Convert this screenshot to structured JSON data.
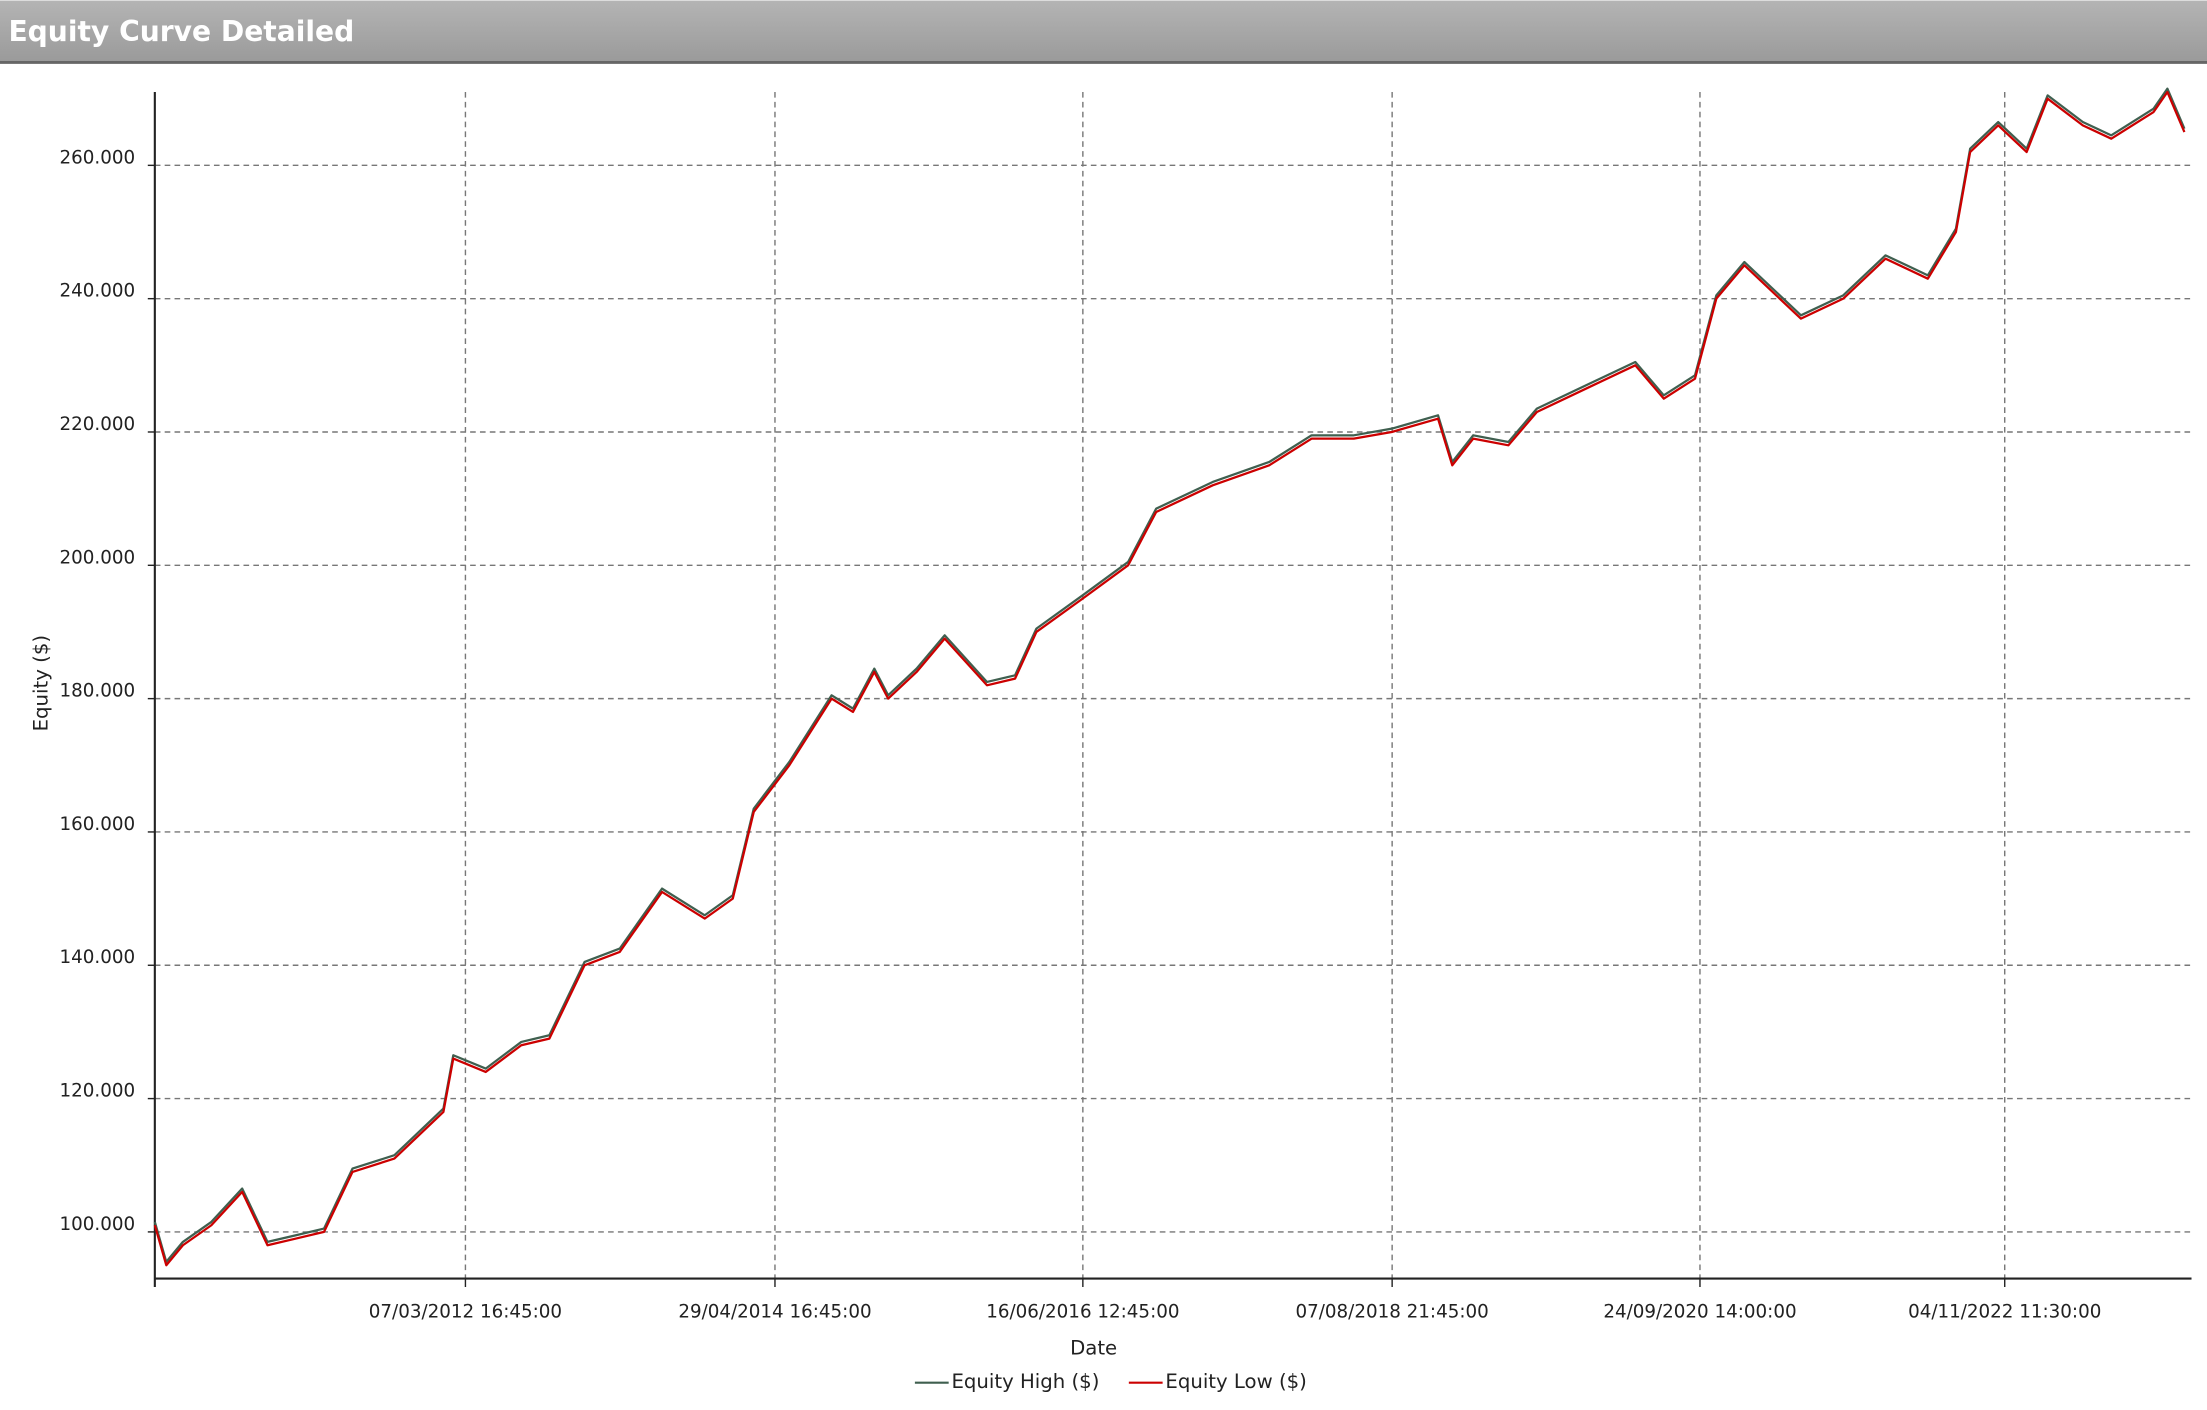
{
  "chart_data": {
    "type": "line",
    "title": "Equity Curve Detailed",
    "x_label": "Date",
    "y_label": "Equity ($)",
    "x": [
      "2010-01-12",
      "2010-02-10",
      "2010-03-24",
      "2010-06-04",
      "2010-08-21",
      "2010-10-24",
      "2011-01-04",
      "2011-03-16",
      "2011-05-27",
      "2011-09-10",
      "2012-01-12",
      "2012-02-06",
      "2012-04-28",
      "2012-07-27",
      "2012-10-06",
      "2013-01-03",
      "2013-04-02",
      "2013-07-18",
      "2013-11-03",
      "2014-01-13",
      "2014-03-07",
      "2014-06-05",
      "2014-09-20",
      "2014-11-13",
      "2015-01-06",
      "2015-02-10",
      "2015-04-23",
      "2015-07-03",
      "2015-10-18",
      "2015-12-28",
      "2016-02-20",
      "2016-06-16",
      "2016-10-09",
      "2016-12-19",
      "2017-05-11",
      "2017-10-01",
      "2018-01-16",
      "2018-05-03",
      "2018-08-07",
      "2018-12-02",
      "2019-01-07",
      "2019-03-01",
      "2019-05-29",
      "2019-08-09",
      "2019-12-29",
      "2020-04-14",
      "2020-06-25",
      "2020-09-12",
      "2020-11-05",
      "2021-01-15",
      "2021-06-07",
      "2021-09-22",
      "2022-01-07",
      "2022-04-24",
      "2022-07-04",
      "2022-08-09",
      "2022-10-19",
      "2022-12-30",
      "2023-02-21",
      "2023-05-21",
      "2023-08-01",
      "2023-11-16",
      "2023-12-21",
      "2024-02-02"
    ],
    "series": [
      {
        "name": "Equity High ($)",
        "color": "#3f5f4f",
        "values": [
          101500,
          95500,
          98500,
          101500,
          106500,
          98500,
          99500,
          100500,
          109500,
          111500,
          118500,
          126500,
          124500,
          128500,
          129500,
          140500,
          142500,
          151500,
          147500,
          150500,
          163500,
          170500,
          180500,
          178500,
          184500,
          180500,
          184500,
          189500,
          182500,
          183500,
          190500,
          195500,
          200500,
          208500,
          212500,
          215500,
          219500,
          219500,
          220500,
          222500,
          215500,
          219500,
          218500,
          223500,
          227500,
          230500,
          225500,
          228500,
          240500,
          245500,
          237500,
          240500,
          246500,
          243500,
          250500,
          262500,
          266500,
          262500,
          270500,
          266500,
          264500,
          268500,
          271500,
          265500
        ]
      },
      {
        "name": "Equity Low ($)",
        "color": "#cc0000",
        "values": [
          101000,
          95000,
          98000,
          101000,
          106000,
          98000,
          99000,
          100000,
          109000,
          111000,
          118000,
          126000,
          124000,
          128000,
          129000,
          140000,
          142000,
          151000,
          147000,
          150000,
          163000,
          170000,
          180000,
          178000,
          184000,
          180000,
          184000,
          189000,
          182000,
          183000,
          190000,
          195000,
          200000,
          208000,
          212000,
          215000,
          219000,
          219000,
          220000,
          222000,
          215000,
          219000,
          218000,
          223000,
          227000,
          230000,
          225000,
          228000,
          240000,
          245000,
          237000,
          240000,
          246000,
          243000,
          250000,
          262000,
          266000,
          262000,
          270000,
          266000,
          264000,
          268000,
          271000,
          265000
        ]
      }
    ],
    "xlim": [
      "2010-01-12",
      "2024-02-20"
    ],
    "xticks": [
      {
        "value": "2012-03-07T16:45:00",
        "label": "07/03/2012 16:45:00"
      },
      {
        "value": "2014-04-29T16:45:00",
        "label": "29/04/2014 16:45:00"
      },
      {
        "value": "2016-06-16T12:45:00",
        "label": "16/06/2016 12:45:00"
      },
      {
        "value": "2018-08-07T21:45:00",
        "label": "07/08/2018 21:45:00"
      },
      {
        "value": "2020-09-24T14:00:00",
        "label": "24/09/2020 14:00:00"
      },
      {
        "value": "2022-11-04T11:30:00",
        "label": "04/11/2022 11:30:00"
      }
    ],
    "ylim": [
      93000,
      271000
    ],
    "yticks": [
      {
        "value": 100000,
        "label": "100.000"
      },
      {
        "value": 120000,
        "label": "120.000"
      },
      {
        "value": 140000,
        "label": "140.000"
      },
      {
        "value": 160000,
        "label": "160.000"
      },
      {
        "value": 180000,
        "label": "180.000"
      },
      {
        "value": 200000,
        "label": "200.000"
      },
      {
        "value": 220000,
        "label": "220.000"
      },
      {
        "value": 240000,
        "label": "240.000"
      },
      {
        "value": 260000,
        "label": "260.000"
      }
    ],
    "grid": true,
    "legend": "bottom"
  }
}
